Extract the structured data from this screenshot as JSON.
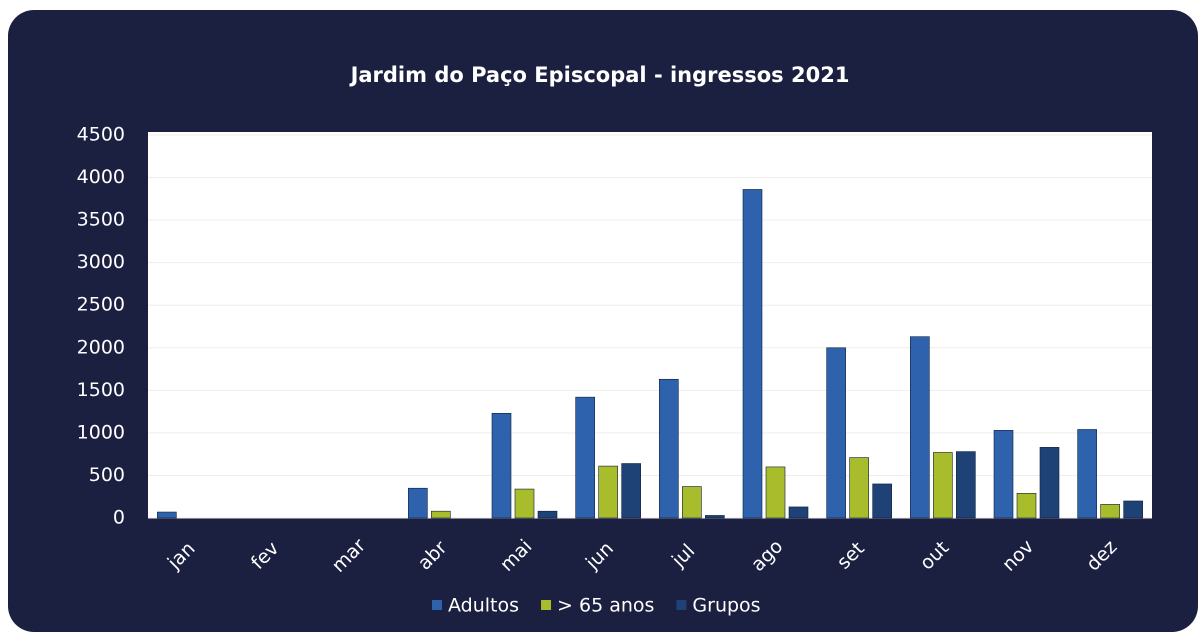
{
  "chart_data": {
    "type": "bar",
    "title": "Jardim do Paço Episcopal - ingressos 2021",
    "categories": [
      "jan",
      "fev",
      "mar",
      "abr",
      "mai",
      "jun",
      "jul",
      "ago",
      "set",
      "out",
      "nov",
      "dez"
    ],
    "series": [
      {
        "name": "Adultos",
        "color": "#2f62ad",
        "values": [
          70,
          0,
          0,
          350,
          1230,
          1420,
          1630,
          3860,
          2000,
          2130,
          1030,
          1040
        ]
      },
      {
        "name": "> 65 anos",
        "color": "#a8bc2c",
        "values": [
          0,
          0,
          0,
          80,
          340,
          610,
          370,
          600,
          710,
          770,
          290,
          160
        ]
      },
      {
        "name": "Grupos",
        "color": "#1f4276",
        "values": [
          0,
          0,
          0,
          0,
          80,
          640,
          30,
          130,
          400,
          780,
          830,
          200
        ]
      }
    ],
    "ylim": [
      0,
      4500
    ],
    "yticks": [
      0,
      500,
      1000,
      1500,
      2000,
      2500,
      3000,
      3500,
      4000,
      4500
    ],
    "grid": true,
    "legend": "bottom"
  }
}
